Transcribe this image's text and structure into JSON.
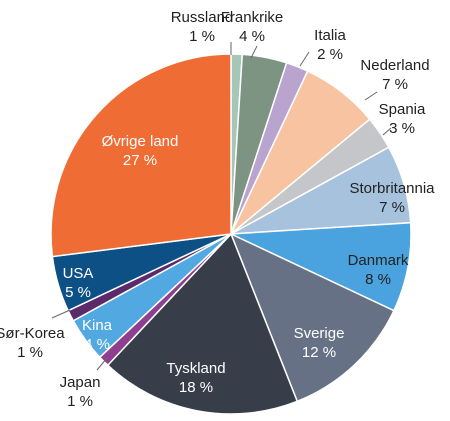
{
  "chart_data": {
    "type": "pie",
    "start": "top",
    "direction": "clockwise",
    "unit": "%",
    "slices": [
      {
        "label": "Russland",
        "value": 1,
        "value_text": "1 %",
        "color": "#a6c7b8"
      },
      {
        "label": "Frankrike",
        "value": 4,
        "value_text": "4 %",
        "color": "#7d9482"
      },
      {
        "label": "Italia",
        "value": 2,
        "value_text": "2 %",
        "color": "#b8a4cf"
      },
      {
        "label": "Nederland",
        "value": 7,
        "value_text": "7 %",
        "color": "#f7c3a0"
      },
      {
        "label": "Spania",
        "value": 3,
        "value_text": "3 %",
        "color": "#c4c6c9"
      },
      {
        "label": "Storbritannia",
        "value": 7,
        "value_text": "7 %",
        "color": "#a7c2dd"
      },
      {
        "label": "Danmark",
        "value": 8,
        "value_text": "8 %",
        "color": "#4aa3df"
      },
      {
        "label": "Sverige",
        "value": 12,
        "value_text": "12 %",
        "color": "#677186"
      },
      {
        "label": "Tyskland",
        "value": 18,
        "value_text": "18 %",
        "color": "#383d4a"
      },
      {
        "label": "Japan",
        "value": 1,
        "value_text": "1 %",
        "color": "#8e3f8f"
      },
      {
        "label": "Kina",
        "value": 4,
        "value_text": "4 %",
        "color": "#52a8e0"
      },
      {
        "label": "Sør-Korea",
        "value": 1,
        "value_text": "1 %",
        "color": "#5a2a6b"
      },
      {
        "label": "USA",
        "value": 5,
        "value_text": "5 %",
        "color": "#0c5085"
      },
      {
        "label": "Øvrige land",
        "value": 27,
        "value_text": "27 %",
        "color": "#ef6c35"
      }
    ]
  }
}
